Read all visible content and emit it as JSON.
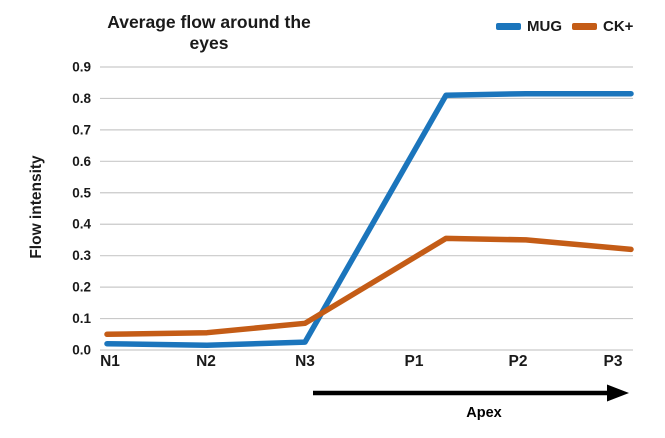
{
  "chart_data": {
    "type": "line",
    "title": "Average flow around the eyes",
    "ylabel": "Flow intensity",
    "xlabel": "",
    "categories": [
      "N1",
      "N2",
      "N3",
      "P1",
      "P2",
      "P3"
    ],
    "series": [
      {
        "name": "MUG",
        "color": "#1b75bc",
        "values": [
          0.02,
          0.015,
          0.025,
          0.81,
          0.815,
          0.815
        ]
      },
      {
        "name": "CK+",
        "color": "#c45c16",
        "values": [
          0.05,
          0.055,
          0.085,
          0.355,
          0.35,
          0.32
        ]
      }
    ],
    "ylim": [
      0,
      0.9
    ],
    "ytick_step": 0.1,
    "ytick_labels": [
      "0.0",
      "0.1",
      "0.2",
      "0.3",
      "0.4",
      "0.5",
      "0.6",
      "0.7",
      "0.8",
      "0.9"
    ],
    "grid": "horizontal",
    "gridline_color": "#c9c9c9",
    "legend_position": "top-right",
    "annotation": {
      "type": "arrow",
      "label": "Apex",
      "from_category": "N3",
      "to_category": "P3",
      "color": "#000000"
    }
  }
}
